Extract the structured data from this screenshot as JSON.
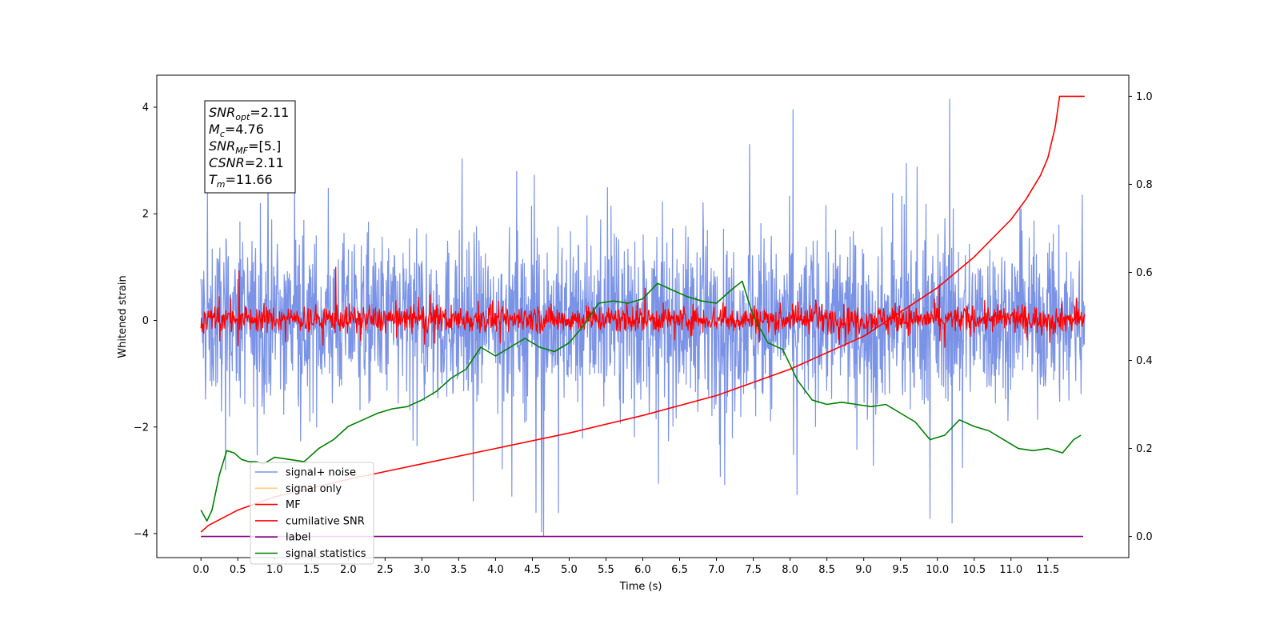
{
  "chart_data": {
    "type": "line",
    "xlabel": "Time (s)",
    "ylabel": "Whitened strain",
    "xlim": [
      -0.6,
      12.6
    ],
    "ylim": [
      -4.45,
      4.6
    ],
    "y2lim": [
      -0.048,
      1.048
    ],
    "x_ticks": [
      "0.0",
      "0.5",
      "1.0",
      "1.5",
      "2.0",
      "2.5",
      "3.0",
      "3.5",
      "4.0",
      "4.5",
      "5.0",
      "5.5",
      "6.0",
      "6.5",
      "7.0",
      "7.5",
      "8.0",
      "8.5",
      "9.0",
      "9.5",
      "10.0",
      "10.5",
      "11.0",
      "11.5"
    ],
    "y_ticks": [
      "−4",
      "−2",
      "0",
      "2",
      "4"
    ],
    "y2_ticks": [
      "0.0",
      "0.2",
      "0.4",
      "0.6",
      "0.8",
      "1.0"
    ],
    "grid": false,
    "legend_position": "lower-left",
    "info_box": {
      "lines": [
        {
          "main": "SNR",
          "sub": "opt",
          "value": "=2.11"
        },
        {
          "main": "M",
          "sub": "c",
          "value": "=4.76"
        },
        {
          "main": "SNR",
          "sub": "MF",
          "value": "=[5.]"
        },
        {
          "main": "CSNR",
          "sub": "",
          "value": "=2.11"
        },
        {
          "main": "T",
          "sub": "m",
          "value": "=11.66"
        }
      ]
    },
    "series": [
      {
        "name": "signal+ noise",
        "color": "#7b93e6",
        "axis": "left",
        "style": "noise",
        "x_range": [
          0.0,
          12.0
        ],
        "typical_range": [
          -2.0,
          2.0
        ],
        "peaks": [
          {
            "x": 10.17,
            "y": 4.15
          },
          {
            "x": 4.65,
            "y": -4.05
          },
          {
            "x": 4.55,
            "y": -3.6
          },
          {
            "x": 7.45,
            "y": 3.3
          },
          {
            "x": 10.2,
            "y": -3.8
          }
        ]
      },
      {
        "name": "signal only",
        "color": "#ffcc80",
        "axis": "left",
        "style": "none"
      },
      {
        "name": "MF",
        "color": "#ff0000",
        "axis": "left",
        "style": "noise",
        "x_range": [
          0.0,
          12.0
        ],
        "typical_range": [
          -0.3,
          0.35
        ],
        "peaks": [
          {
            "x": 1.83,
            "y": 1.0
          },
          {
            "x": 0.52,
            "y": 0.93
          }
        ]
      },
      {
        "name": "cumilative SNR",
        "color": "#ff0000",
        "axis": "right",
        "x": [
          0.0,
          0.1,
          0.5,
          1.0,
          2.0,
          3.0,
          4.0,
          5.0,
          6.0,
          7.0,
          8.0,
          9.0,
          9.5,
          10.0,
          10.5,
          11.0,
          11.2,
          11.4,
          11.5,
          11.6,
          11.66,
          12.0
        ],
        "y": [
          0.01,
          0.025,
          0.06,
          0.09,
          0.13,
          0.165,
          0.2,
          0.235,
          0.275,
          0.32,
          0.38,
          0.455,
          0.51,
          0.565,
          0.635,
          0.72,
          0.765,
          0.82,
          0.86,
          0.93,
          1.0,
          1.0
        ]
      },
      {
        "name": "label",
        "color": "#800080",
        "axis": "right",
        "x": [
          0.0,
          11.98
        ],
        "y": [
          0.0,
          0.0
        ]
      },
      {
        "name": "signal statistics",
        "color": "#008000",
        "axis": "right",
        "x": [
          0.0,
          0.08,
          0.15,
          0.25,
          0.35,
          0.45,
          0.55,
          0.65,
          0.75,
          0.85,
          1.0,
          1.2,
          1.4,
          1.6,
          1.8,
          2.0,
          2.2,
          2.4,
          2.6,
          2.8,
          3.0,
          3.2,
          3.4,
          3.6,
          3.8,
          4.0,
          4.2,
          4.4,
          4.6,
          4.8,
          5.0,
          5.2,
          5.4,
          5.6,
          5.8,
          6.0,
          6.2,
          6.4,
          6.6,
          6.8,
          7.0,
          7.2,
          7.35,
          7.5,
          7.7,
          7.9,
          8.1,
          8.3,
          8.5,
          8.7,
          8.9,
          9.1,
          9.3,
          9.5,
          9.7,
          9.9,
          10.1,
          10.3,
          10.5,
          10.7,
          10.9,
          11.1,
          11.3,
          11.5,
          11.7,
          11.85,
          11.95
        ],
        "y": [
          0.06,
          0.035,
          0.06,
          0.14,
          0.195,
          0.19,
          0.175,
          0.17,
          0.17,
          0.165,
          0.18,
          0.175,
          0.17,
          0.2,
          0.22,
          0.25,
          0.265,
          0.28,
          0.29,
          0.295,
          0.31,
          0.33,
          0.36,
          0.38,
          0.43,
          0.41,
          0.43,
          0.45,
          0.43,
          0.42,
          0.44,
          0.48,
          0.53,
          0.535,
          0.53,
          0.54,
          0.575,
          0.56,
          0.545,
          0.535,
          0.53,
          0.56,
          0.58,
          0.5,
          0.44,
          0.425,
          0.355,
          0.31,
          0.3,
          0.305,
          0.3,
          0.295,
          0.3,
          0.28,
          0.26,
          0.22,
          0.23,
          0.265,
          0.25,
          0.24,
          0.22,
          0.2,
          0.195,
          0.2,
          0.19,
          0.22,
          0.23
        ]
      }
    ]
  }
}
